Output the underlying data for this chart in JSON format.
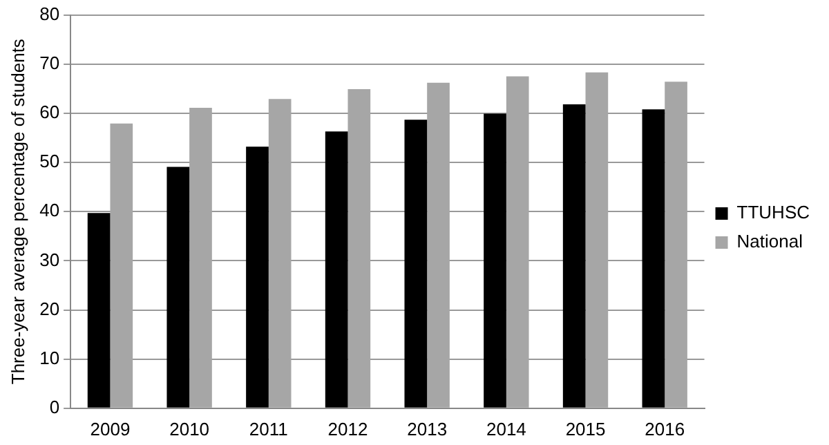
{
  "chart_data": {
    "type": "bar",
    "ylabel": "Three-year average percentage of students",
    "categories": [
      "2009",
      "2010",
      "2011",
      "2012",
      "2013",
      "2014",
      "2015",
      "2016"
    ],
    "series": [
      {
        "name": "TTUHSC",
        "color": "#000000",
        "values": [
          39.7,
          49.1,
          53.2,
          56.3,
          58.7,
          59.9,
          61.8,
          60.8
        ]
      },
      {
        "name": "National",
        "color": "#a6a6a6",
        "values": [
          57.9,
          61.1,
          62.9,
          64.9,
          66.2,
          67.5,
          68.3,
          66.4
        ]
      }
    ],
    "ylim": [
      0,
      80
    ],
    "yticks": [
      0,
      10,
      20,
      30,
      40,
      50,
      60,
      70,
      80
    ],
    "grid": "y",
    "legend": "right"
  }
}
